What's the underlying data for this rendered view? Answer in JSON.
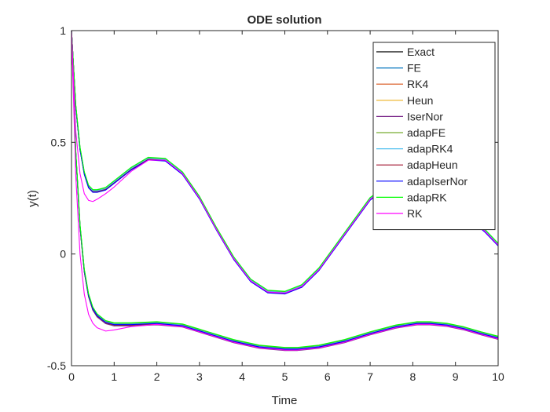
{
  "chart_data": {
    "type": "line",
    "title": "ODE solution",
    "xlabel": "Time",
    "ylabel": "y(t)",
    "xlim": [
      0,
      10
    ],
    "ylim": [
      -0.5,
      1
    ],
    "xticks": [
      0,
      1,
      2,
      3,
      4,
      5,
      6,
      7,
      8,
      9,
      10
    ],
    "yticks": [
      -0.5,
      0,
      0.5,
      1
    ],
    "ytick_labels": [
      "-0.5",
      "0",
      "0.5",
      "1"
    ],
    "grid": false,
    "legend_position": "top-right",
    "series": [
      {
        "name": "Exact",
        "color": "#000000",
        "branches": {
          "upper": {
            "x": [
              0,
              0.1,
              0.2,
              0.3,
              0.4,
              0.5,
              0.6,
              0.8,
              1.0,
              1.4,
              1.8,
              2.2,
              2.6,
              3.0,
              3.4,
              3.8,
              4.2,
              4.6,
              5.0,
              5.4,
              5.8,
              6.2,
              6.6,
              7.0,
              7.4,
              7.8,
              8.2,
              8.6,
              9.0,
              9.4,
              9.7,
              10.0
            ],
            "y": [
              1,
              0.66,
              0.47,
              0.36,
              0.3,
              0.28,
              0.28,
              0.29,
              0.32,
              0.38,
              0.425,
              0.42,
              0.36,
              0.25,
              0.11,
              -0.02,
              -0.12,
              -0.17,
              -0.175,
              -0.145,
              -0.07,
              0.035,
              0.14,
              0.245,
              0.3,
              0.33,
              0.32,
              0.28,
              0.23,
              0.15,
              0.1,
              0.04
            ]
          },
          "lower": {
            "x": [
              0,
              0.1,
              0.2,
              0.3,
              0.4,
              0.5,
              0.6,
              0.8,
              1.0,
              1.4,
              2.0,
              2.6,
              3.2,
              3.8,
              4.4,
              5.0,
              5.3,
              5.8,
              6.4,
              7.0,
              7.6,
              8.1,
              8.4,
              8.8,
              9.2,
              9.6,
              10.0
            ],
            "y": [
              1,
              0.45,
              0.12,
              -0.08,
              -0.19,
              -0.25,
              -0.28,
              -0.31,
              -0.32,
              -0.32,
              -0.315,
              -0.325,
              -0.36,
              -0.395,
              -0.42,
              -0.43,
              -0.43,
              -0.42,
              -0.395,
              -0.36,
              -0.33,
              -0.315,
              -0.315,
              -0.322,
              -0.338,
              -0.36,
              -0.38
            ]
          }
        }
      },
      {
        "name": "FE",
        "color": "#0072bd",
        "offset": [
          0.004,
          0.008
        ]
      },
      {
        "name": "RK4",
        "color": "#d95319",
        "offset": [
          0,
          0.002
        ]
      },
      {
        "name": "Heun",
        "color": "#edb120",
        "offset": [
          0.002,
          0.005
        ]
      },
      {
        "name": "IserNor",
        "color": "#7e2f8e",
        "offset": [
          0,
          -0.002
        ]
      },
      {
        "name": "adapFE",
        "color": "#77ac30",
        "offset": [
          0.006,
          0.01
        ]
      },
      {
        "name": "adapRK4",
        "color": "#4dbeee",
        "offset": [
          0.003,
          0.006
        ]
      },
      {
        "name": "adapHeun",
        "color": "#a2142f",
        "offset": [
          -0.002,
          0.003
        ]
      },
      {
        "name": "adapIserNor",
        "color": "#0000ff",
        "offset": [
          -0.004,
          0.004
        ]
      },
      {
        "name": "adapRK",
        "color": "#00ff00",
        "offset": [
          0.008,
          0.012
        ]
      },
      {
        "name": "RK",
        "color": "#ff00ff",
        "branches": {
          "upper": {
            "x": [
              0,
              0.1,
              0.2,
              0.3,
              0.4,
              0.5,
              0.6,
              0.8,
              1.0,
              1.4,
              1.8,
              2.2,
              2.6,
              3.0,
              3.4,
              3.8,
              4.2,
              4.6,
              5.0,
              5.4,
              5.8,
              6.2,
              6.6,
              7.0,
              7.4,
              7.8,
              8.2,
              8.6,
              9.0,
              9.4,
              9.7,
              10.0
            ],
            "y": [
              1,
              0.55,
              0.36,
              0.27,
              0.24,
              0.235,
              0.245,
              0.27,
              0.3,
              0.37,
              0.42,
              0.42,
              0.36,
              0.25,
              0.11,
              -0.02,
              -0.12,
              -0.17,
              -0.175,
              -0.145,
              -0.07,
              0.035,
              0.14,
              0.245,
              0.3,
              0.33,
              0.32,
              0.28,
              0.23,
              0.15,
              0.1,
              0.04
            ]
          },
          "lower": {
            "x": [
              0,
              0.1,
              0.2,
              0.3,
              0.4,
              0.5,
              0.6,
              0.8,
              1.0,
              1.4,
              2.0,
              2.6,
              3.2,
              3.8,
              4.4,
              5.0,
              5.3,
              5.8,
              6.4,
              7.0,
              7.6,
              8.1,
              8.4,
              8.8,
              9.2,
              9.6,
              10.0
            ],
            "y": [
              1,
              0.35,
              0.0,
              -0.18,
              -0.27,
              -0.31,
              -0.33,
              -0.345,
              -0.34,
              -0.325,
              -0.315,
              -0.325,
              -0.36,
              -0.395,
              -0.42,
              -0.43,
              -0.43,
              -0.42,
              -0.395,
              -0.36,
              -0.33,
              -0.315,
              -0.315,
              -0.322,
              -0.338,
              -0.36,
              -0.38
            ]
          }
        }
      }
    ]
  }
}
